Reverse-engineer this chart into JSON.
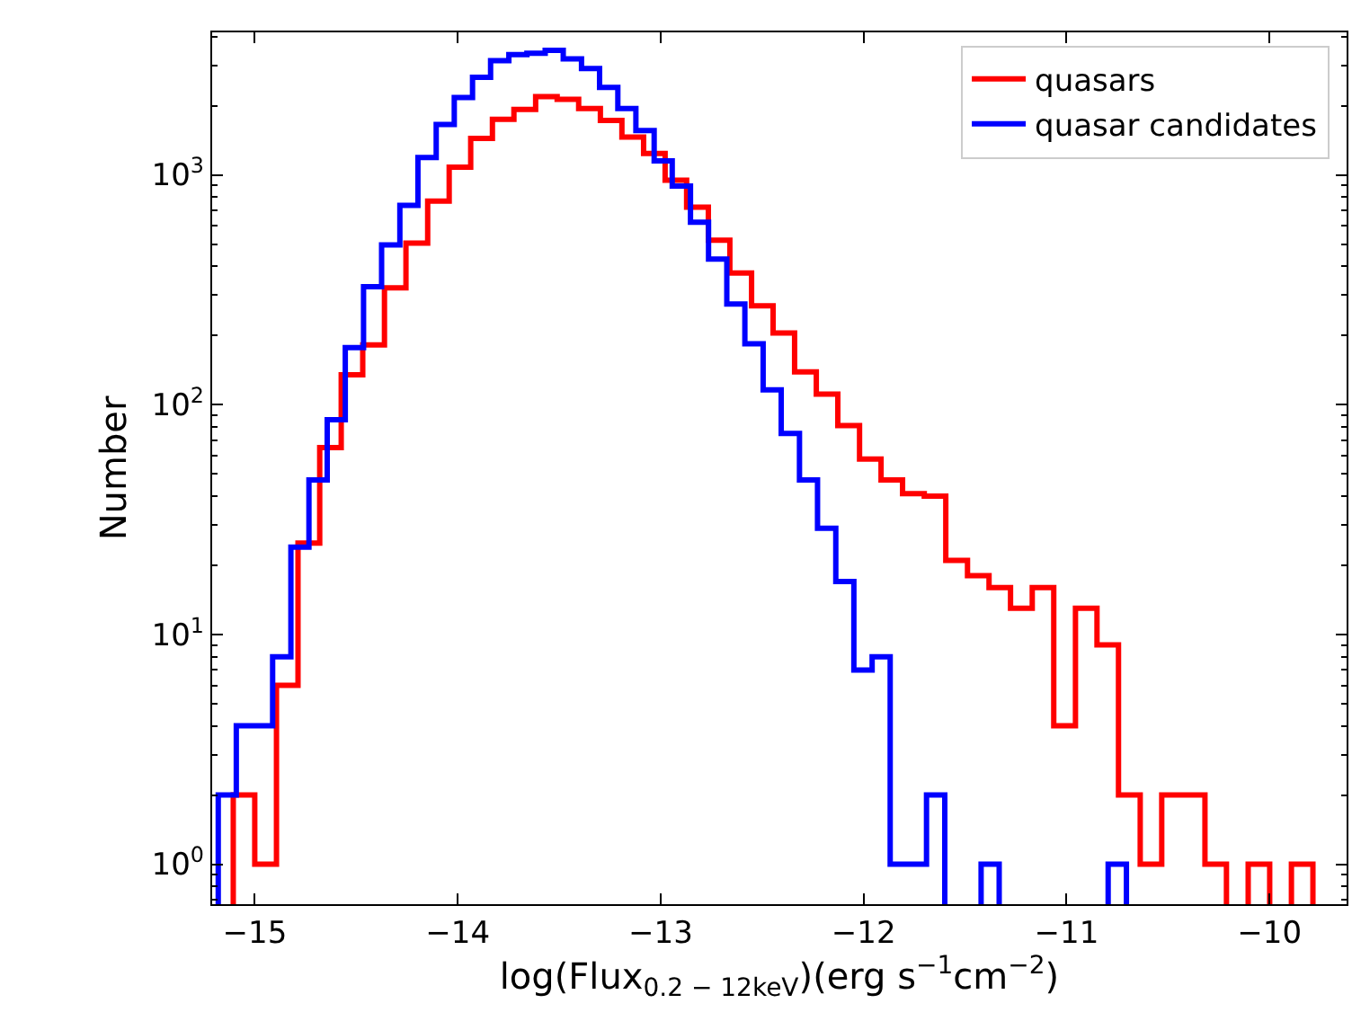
{
  "chart_data": {
    "type": "step",
    "xlabel": "log(Flux$_{0.2 − 12keV}$)(erg s$^{−1}$cm$^{−2}$)",
    "ylabel": "Number",
    "log": "y",
    "legend": "top right",
    "line_style": "solid",
    "xlim": [
      -15.21,
      -9.62
    ],
    "xticks": [
      -15,
      -14,
      -13,
      -12,
      -11,
      -10
    ],
    "ylim": [
      0.67,
      4170
    ],
    "yticks": [
      {
        "value": 1,
        "label": "10$^{0}$"
      },
      {
        "value": 10,
        "label": "10$^{1}$"
      },
      {
        "value": 100,
        "label": "10$^{2}$"
      },
      {
        "value": 1000,
        "label": "10$^{3}$"
      }
    ],
    "series": [
      {
        "name": "quasars",
        "color": "#ff0000",
        "x": [
          -15.106,
          -15.0,
          -14.893,
          -14.787,
          -14.68,
          -14.574,
          -14.468,
          -14.361,
          -14.255,
          -14.148,
          -14.042,
          -13.936,
          -13.829,
          -13.723,
          -13.616,
          -13.51,
          -13.404,
          -13.297,
          -13.191,
          -13.084,
          -12.978,
          -12.872,
          -12.765,
          -12.659,
          -12.552,
          -12.446,
          -12.34,
          -12.233,
          -12.127,
          -12.02,
          -11.914,
          -11.808,
          -11.701,
          -11.595,
          -11.488,
          -11.382,
          -11.276,
          -11.169,
          -11.063,
          -10.956,
          -10.85,
          -10.744,
          -10.637,
          -10.531,
          -10.424,
          -10.318,
          -10.212,
          -10.105,
          -9.999,
          -9.892,
          -9.786
        ],
        "values": [
          2,
          1,
          6,
          25,
          65,
          135,
          182,
          322,
          505,
          768,
          1080,
          1440,
          1745,
          1925,
          2190,
          2130,
          1945,
          1725,
          1460,
          1240,
          948,
          723,
          520,
          374,
          269,
          205,
          139,
          111,
          81,
          58,
          47,
          41,
          40,
          21,
          18,
          16,
          13,
          16,
          4,
          13,
          9,
          2,
          1,
          2,
          2,
          1,
          null,
          1,
          null,
          1,
          1
        ]
      },
      {
        "name": "quasar candidates",
        "color": "#0000ff",
        "x": [
          -15.18,
          -15.091,
          -15.001,
          -14.912,
          -14.822,
          -14.733,
          -14.643,
          -14.554,
          -14.464,
          -14.375,
          -14.285,
          -14.196,
          -14.106,
          -14.017,
          -13.927,
          -13.838,
          -13.748,
          -13.659,
          -13.569,
          -13.48,
          -13.39,
          -13.301,
          -13.211,
          -13.122,
          -13.032,
          -12.943,
          -12.853,
          -12.764,
          -12.674,
          -12.585,
          -12.495,
          -12.406,
          -12.316,
          -12.227,
          -12.137,
          -12.048,
          -11.958,
          -11.869,
          -11.779,
          -11.69,
          -11.6,
          -11.511,
          -11.421,
          -11.332,
          -11.242,
          -11.153,
          -11.063,
          -10.974,
          -10.884,
          -10.795,
          -10.705
        ],
        "values": [
          2,
          4,
          4,
          8,
          24,
          47,
          86,
          177,
          326,
          496,
          736,
          1190,
          1655,
          2170,
          2655,
          3140,
          3340,
          3380,
          3480,
          3200,
          2900,
          2400,
          1945,
          1560,
          1150,
          893,
          622,
          430,
          274,
          184,
          116,
          75,
          47,
          29,
          17,
          7,
          8,
          1,
          1,
          2,
          null,
          null,
          1,
          null,
          null,
          null,
          null,
          null,
          null,
          1,
          1
        ]
      }
    ]
  }
}
